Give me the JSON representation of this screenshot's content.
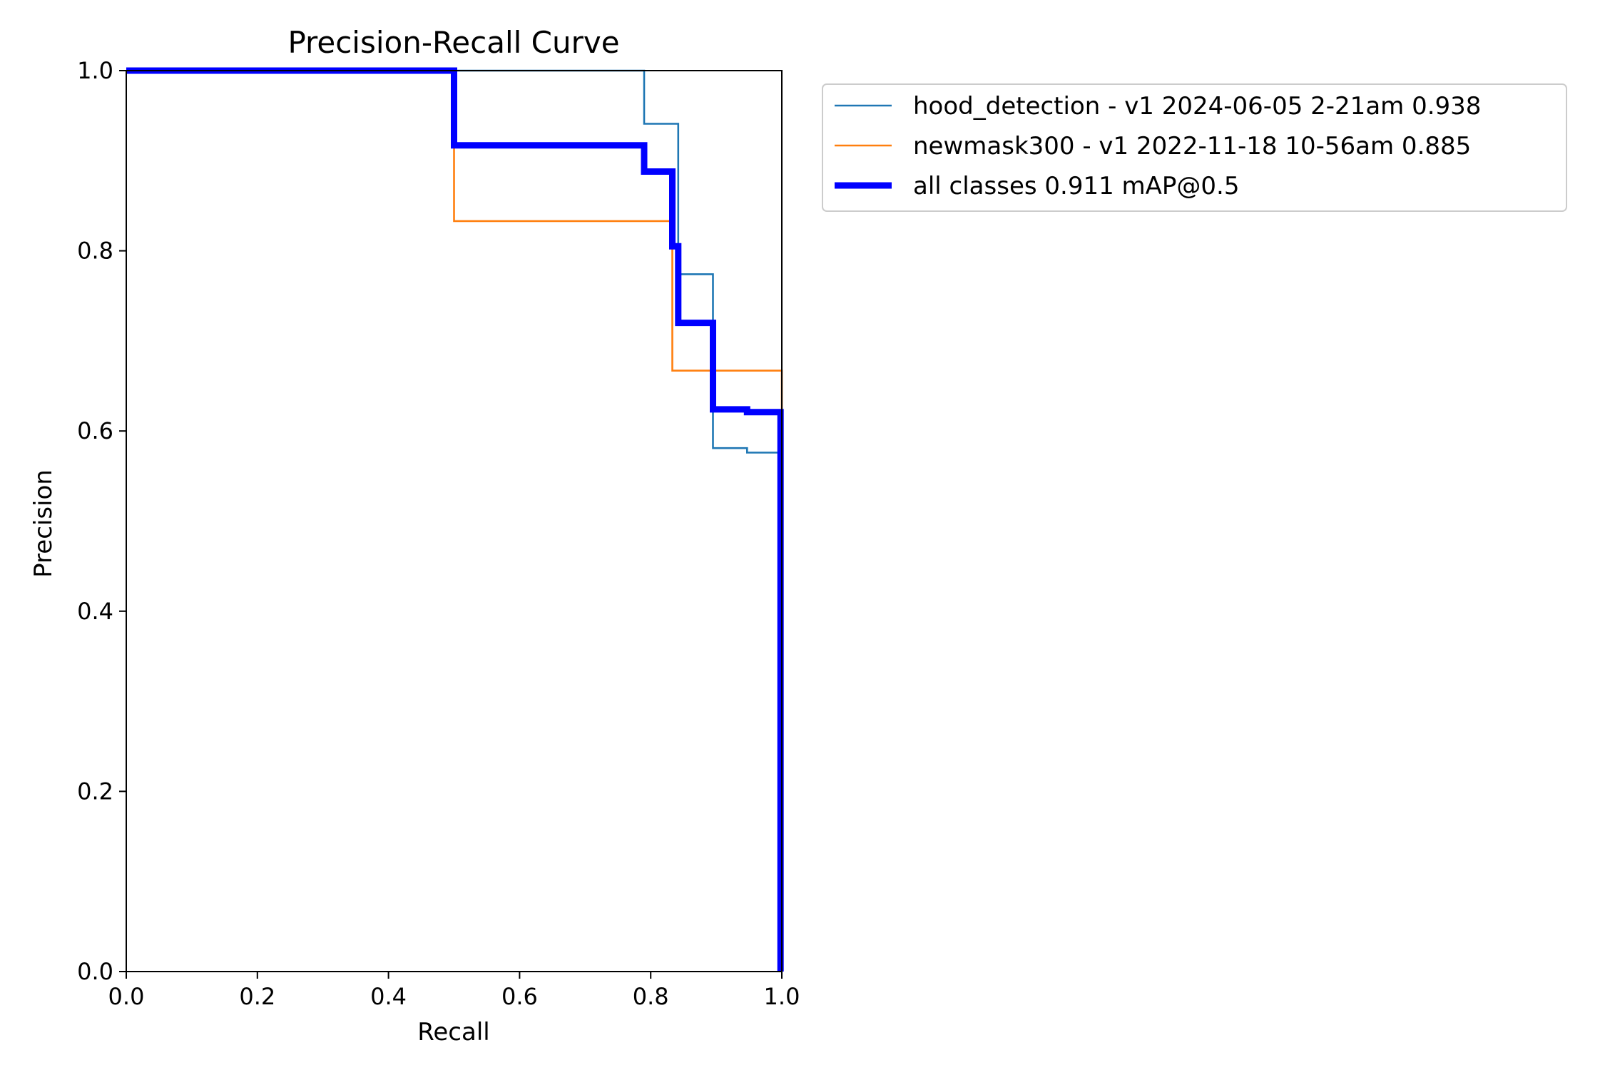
{
  "chart_data": {
    "type": "line",
    "title": "Precision-Recall Curve",
    "xlabel": "Recall",
    "ylabel": "Precision",
    "xlim": [
      0,
      1
    ],
    "ylim": [
      0,
      1
    ],
    "xticks": [
      "0.0",
      "0.2",
      "0.4",
      "0.6",
      "0.8",
      "1.0"
    ],
    "yticks": [
      "0.0",
      "0.2",
      "0.4",
      "0.6",
      "0.8",
      "1.0"
    ],
    "grid": false,
    "legend_position": "outside-right-top",
    "series": [
      {
        "name": "hood_detection - v1 2024-06-05 2-21am 0.938",
        "color": "#1f77b4",
        "width": "thin",
        "x": [
          0.0,
          0.79,
          0.79,
          0.842,
          0.842,
          0.895,
          0.895,
          0.947,
          0.947,
          1.0,
          1.0
        ],
        "y": [
          1.0,
          1.0,
          0.941,
          0.941,
          0.774,
          0.774,
          0.581,
          0.581,
          0.576,
          0.576,
          0.0
        ]
      },
      {
        "name": "newmask300 - v1 2022-11-18 10-56am 0.885",
        "color": "#ff7f0e",
        "width": "thin",
        "x": [
          0.0,
          0.5,
          0.5,
          0.833,
          0.833,
          1.0,
          1.0
        ],
        "y": [
          1.0,
          1.0,
          0.833,
          0.833,
          0.667,
          0.667,
          0.0
        ]
      },
      {
        "name": "all classes 0.911 mAP@0.5",
        "color": "#0000ff",
        "width": "thick",
        "x": [
          0.0,
          0.5,
          0.5,
          0.79,
          0.79,
          0.833,
          0.833,
          0.842,
          0.842,
          0.895,
          0.895,
          0.947,
          0.947,
          0.998,
          0.998
        ],
        "y": [
          1.0,
          1.0,
          0.917,
          0.917,
          0.888,
          0.888,
          0.805,
          0.805,
          0.72,
          0.72,
          0.624,
          0.624,
          0.621,
          0.621,
          0.0
        ]
      }
    ]
  }
}
